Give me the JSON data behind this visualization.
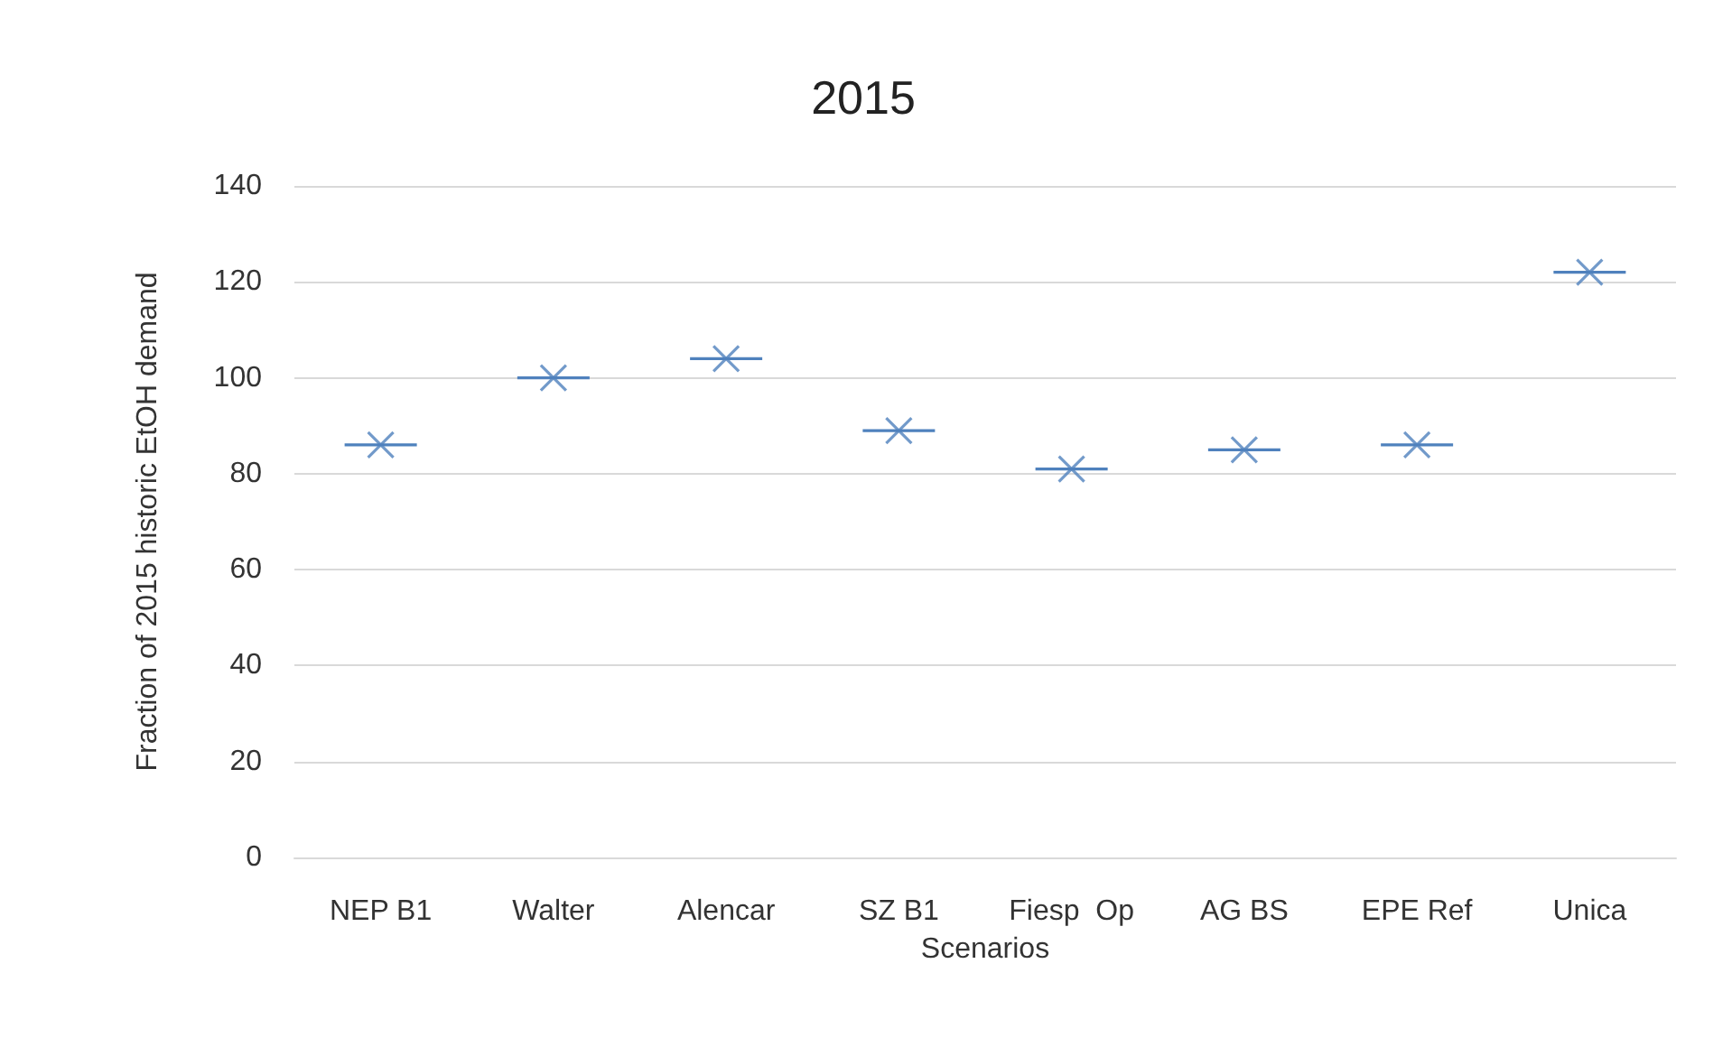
{
  "chart_data": {
    "type": "box",
    "title": "2015",
    "xlabel": "Scenarios",
    "ylabel": "Fraction of 2015 historic EtOH demand",
    "categories": [
      "NEP B1",
      "Walter",
      "Alencar",
      "SZ B1",
      "Fiesp  Op",
      "AG BS",
      "EPE Ref",
      "Unica"
    ],
    "series": [
      {
        "color": "#4f81bd",
        "boxes": [
          {
            "low": 86,
            "q1": 86,
            "median": 86,
            "q3": 86,
            "high": 86,
            "mean": 86
          },
          {
            "low": 100,
            "q1": 100,
            "median": 100,
            "q3": 100,
            "high": 100,
            "mean": 100
          },
          {
            "low": 104,
            "q1": 104,
            "median": 104,
            "q3": 104,
            "high": 104,
            "mean": 104
          },
          {
            "low": 89,
            "q1": 89,
            "median": 89,
            "q3": 89,
            "high": 89,
            "mean": 89
          },
          {
            "low": 81,
            "q1": 81,
            "median": 81,
            "q3": 81,
            "high": 81,
            "mean": 81
          },
          {
            "low": 85,
            "q1": 85,
            "median": 85,
            "q3": 85,
            "high": 85,
            "mean": 85
          },
          {
            "low": 86,
            "q1": 86,
            "median": 86,
            "q3": 86,
            "high": 86,
            "mean": 86
          },
          {
            "low": 122,
            "q1": 122,
            "median": 122,
            "q3": 122,
            "high": 122,
            "mean": 122
          }
        ]
      }
    ],
    "ylim": [
      0,
      140
    ],
    "yticks": [
      0,
      20,
      40,
      60,
      80,
      100,
      120,
      140
    ],
    "grid": "y",
    "marker": "cross"
  }
}
